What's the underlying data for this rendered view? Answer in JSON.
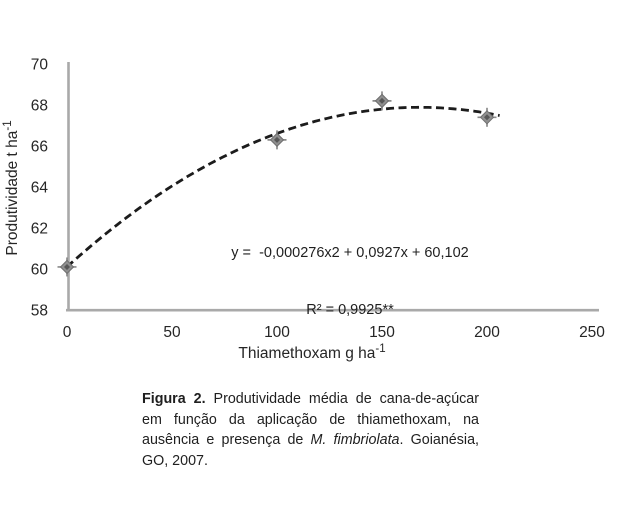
{
  "chart_data": {
    "type": "scatter",
    "x": [
      0,
      100,
      150,
      200
    ],
    "y": [
      60.1,
      66.3,
      68.2,
      67.4
    ],
    "xlabel": "Thiamethoxam g ha",
    "xlabel_superscript": "-1",
    "ylabel": "Produtividade t ha",
    "ylabel_superscript": "-1",
    "xticks": [
      0,
      50,
      100,
      150,
      200,
      250
    ],
    "yticks": [
      58,
      60,
      62,
      64,
      66,
      68,
      70
    ],
    "xlim": [
      0,
      250
    ],
    "ylim": [
      58,
      70
    ],
    "grid": false,
    "legend": false,
    "marker": {
      "shape": "diamond-cross",
      "fill": "#8f8f8f",
      "edge": "#6e6e6e",
      "core": "#575757",
      "cross": "#8a8a8a"
    },
    "trendline": {
      "kind": "quadratic",
      "a": -0.000276,
      "b": 0.0927,
      "c": 60.102,
      "x_start": 0,
      "x_end": 207,
      "style": "dashed",
      "color": "#1c1c1c"
    },
    "annotation": {
      "equation": "y =  -0,000276x2 + 0,0927x + 60,102",
      "r_squared": "R² = 0,9925**"
    },
    "axis_color": "#a9a9a9",
    "text_color": "#262626"
  },
  "caption": {
    "label": "Figura 2.",
    "body_1": " Produtividade média de cana-de-açúcar em função da aplicação de thiamethoxam, na ausência e presença de ",
    "species_italic": "M. fimbriolata",
    "body_2": ". Goianésia, GO, 2007."
  }
}
